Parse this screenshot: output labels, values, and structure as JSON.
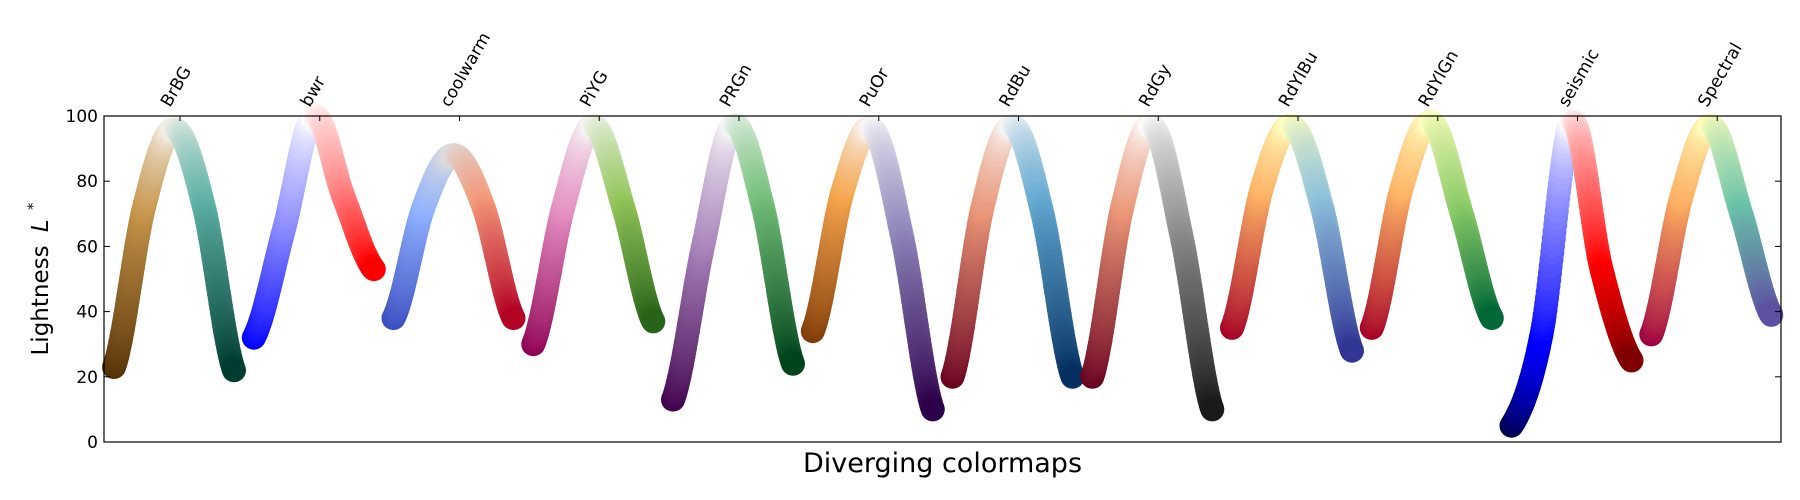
{
  "chart_data": {
    "type": "scatter",
    "title": "",
    "xlabel": "Diverging colormaps",
    "ylabel": "Lightness",
    "ylabel_symbol": "L",
    "ylabel_superscript": "*",
    "ylim": [
      0,
      100
    ],
    "yticks": [
      0,
      20,
      40,
      60,
      80,
      100
    ],
    "grid": false,
    "series": [
      {
        "name": "BrBG",
        "stops": [
          [
            "#543005",
            23
          ],
          [
            "#c7954a",
            72
          ],
          [
            "#f4f1ea",
            96
          ],
          [
            "#5fb3a7",
            72
          ],
          [
            "#003c30",
            22
          ]
        ]
      },
      {
        "name": "bwr",
        "stops": [
          [
            "#0000ff",
            32
          ],
          [
            "#8080ff",
            65
          ],
          [
            "#ffffff",
            100
          ],
          [
            "#ff8080",
            75
          ],
          [
            "#ff0000",
            53
          ]
        ]
      },
      {
        "name": "coolwarm",
        "stops": [
          [
            "#3b4cc0",
            38
          ],
          [
            "#8db0fe",
            72
          ],
          [
            "#dddddd",
            88
          ],
          [
            "#f49a7b",
            72
          ],
          [
            "#b40426",
            38
          ]
        ]
      },
      {
        "name": "PiYG",
        "stops": [
          [
            "#8e0152",
            30
          ],
          [
            "#e38dc0",
            72
          ],
          [
            "#f6f6f6",
            97
          ],
          [
            "#93c65a",
            72
          ],
          [
            "#276419",
            37
          ]
        ]
      },
      {
        "name": "PRGn",
        "stops": [
          [
            "#40004b",
            13
          ],
          [
            "#a47fb8",
            60
          ],
          [
            "#f7f7f7",
            97
          ],
          [
            "#74c07a",
            72
          ],
          [
            "#00441b",
            24
          ]
        ]
      },
      {
        "name": "PuOr",
        "stops": [
          [
            "#7f3b08",
            34
          ],
          [
            "#f5a54c",
            77
          ],
          [
            "#f7f7f7",
            96
          ],
          [
            "#8f86bb",
            62
          ],
          [
            "#2d004b",
            10
          ]
        ]
      },
      {
        "name": "RdBu",
        "stops": [
          [
            "#67001f",
            20
          ],
          [
            "#e99576",
            72
          ],
          [
            "#f7f7f7",
            97
          ],
          [
            "#5ea5cf",
            70
          ],
          [
            "#053061",
            20
          ]
        ]
      },
      {
        "name": "RdGy",
        "stops": [
          [
            "#67001f",
            20
          ],
          [
            "#e99576",
            72
          ],
          [
            "#fdfdfd",
            97
          ],
          [
            "#8c8c8c",
            62
          ],
          [
            "#1a1a1a",
            10
          ]
        ]
      },
      {
        "name": "RdYlBu",
        "stops": [
          [
            "#a50026",
            35
          ],
          [
            "#fdb365",
            78
          ],
          [
            "#ffffbf",
            97
          ],
          [
            "#8ec1dc",
            72
          ],
          [
            "#313695",
            28
          ]
        ]
      },
      {
        "name": "RdYlGn",
        "stops": [
          [
            "#a50026",
            35
          ],
          [
            "#fdb365",
            78
          ],
          [
            "#ffffbf",
            98
          ],
          [
            "#8ccc67",
            70
          ],
          [
            "#006837",
            38
          ]
        ]
      },
      {
        "name": "seismic",
        "stops": [
          [
            "#00004c",
            5
          ],
          [
            "#0000ff",
            33
          ],
          [
            "#ffffff",
            98
          ],
          [
            "#ff0000",
            53
          ],
          [
            "#7f0000",
            25
          ]
        ]
      },
      {
        "name": "Spectral",
        "stops": [
          [
            "#9e0142",
            33
          ],
          [
            "#fdad60",
            75
          ],
          [
            "#fefebd",
            97
          ],
          [
            "#68c3a7",
            70
          ],
          [
            "#5e4fa2",
            39
          ]
        ]
      }
    ]
  }
}
